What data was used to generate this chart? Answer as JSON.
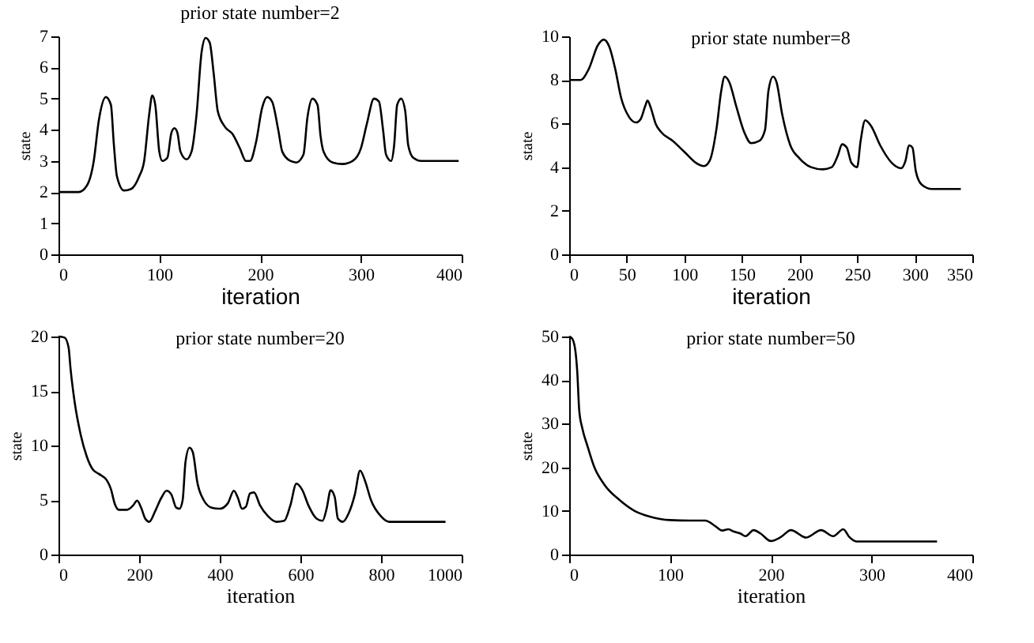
{
  "chart_data": [
    {
      "type": "line",
      "title": "prior state number=2",
      "xlabel": "iteration",
      "ylabel": "state",
      "xlim": [
        0,
        400
      ],
      "xticks": [
        0,
        100,
        200,
        300,
        400
      ],
      "ylim": [
        0,
        7
      ],
      "yticks": [
        0,
        1,
        2,
        3,
        4,
        5,
        6,
        7
      ],
      "x": [
        0,
        20,
        28,
        35,
        40,
        47,
        52,
        55,
        58,
        65,
        72,
        80,
        85,
        90,
        93,
        96,
        100,
        103,
        108,
        112,
        115,
        118,
        121,
        127,
        132,
        137,
        142,
        146,
        150,
        154,
        158,
        165,
        173,
        180,
        186,
        190,
        196,
        202,
        207,
        212,
        218,
        222,
        230,
        236,
        243,
        247,
        252,
        257,
        260,
        263,
        272,
        282,
        292,
        300,
        306,
        313,
        318,
        322,
        325,
        330,
        333,
        336,
        340,
        344,
        347,
        352,
        360,
        397
      ],
      "series": [
        {
          "color": "#000000",
          "values": [
            2,
            2,
            2.2,
            3,
            4.3,
            5.05,
            4.8,
            3.5,
            2.5,
            2.05,
            2.1,
            2.5,
            3,
            4.5,
            5.1,
            4.8,
            3.3,
            3.0,
            3.1,
            3.9,
            4.05,
            3.9,
            3.3,
            3.05,
            3.3,
            4.5,
            6.5,
            6.95,
            6.8,
            5.8,
            4.6,
            4.1,
            3.85,
            3.4,
            3.0,
            3.0,
            3.6,
            4.7,
            5.05,
            4.9,
            4.0,
            3.3,
            3.0,
            2.95,
            3.2,
            4.4,
            5.0,
            4.8,
            3.8,
            3.3,
            2.95,
            2.9,
            3.0,
            3.4,
            4.2,
            5.0,
            4.9,
            4.0,
            3.2,
            3.0,
            3.5,
            4.8,
            5.0,
            4.6,
            3.5,
            3.1,
            3.0,
            3.0
          ]
        }
      ]
    },
    {
      "type": "line",
      "title": "prior state number=8",
      "xlabel": "iteration",
      "ylabel": "state",
      "xlim": [
        0,
        350
      ],
      "xticks": [
        0,
        50,
        100,
        150,
        200,
        250,
        300,
        350
      ],
      "ylim": [
        0,
        10
      ],
      "yticks": [
        0,
        2,
        4,
        6,
        8,
        10
      ],
      "x": [
        0,
        10,
        17,
        25,
        30,
        35,
        40,
        45,
        52,
        58,
        62,
        66,
        68,
        71,
        75,
        80,
        90,
        100,
        110,
        117,
        122,
        128,
        132,
        135,
        139,
        145,
        152,
        158,
        165,
        170,
        173,
        177,
        180,
        185,
        192,
        200,
        210,
        220,
        228,
        233,
        237,
        241,
        245,
        250,
        253,
        257,
        262,
        270,
        280,
        288,
        292,
        295,
        298,
        301,
        306,
        315,
        340
      ],
      "series": [
        {
          "color": "#000000",
          "values": [
            8,
            8,
            8.5,
            9.6,
            9.85,
            9.5,
            8.5,
            7.2,
            6.3,
            6.05,
            6.2,
            6.8,
            7.05,
            6.7,
            6.0,
            5.6,
            5.2,
            4.7,
            4.2,
            4.05,
            4.3,
            5.8,
            7.5,
            8.15,
            7.9,
            6.8,
            5.6,
            5.1,
            5.2,
            5.7,
            7.5,
            8.15,
            7.9,
            6.4,
            5.0,
            4.4,
            4.0,
            3.9,
            4.0,
            4.5,
            5.05,
            4.9,
            4.2,
            4.0,
            5.2,
            6.15,
            5.9,
            5.0,
            4.2,
            3.95,
            4.3,
            5.0,
            4.9,
            3.8,
            3.2,
            3.0,
            3.0
          ]
        }
      ]
    },
    {
      "type": "line",
      "title": "prior state number=20",
      "xlabel": "iteration",
      "ylabel": "state",
      "xlim": [
        0,
        1000
      ],
      "xticks": [
        0,
        200,
        400,
        600,
        800,
        1000
      ],
      "ylim": [
        0,
        20
      ],
      "yticks": [
        0,
        5,
        10,
        15,
        20
      ],
      "x": [
        0,
        15,
        25,
        30,
        40,
        55,
        70,
        85,
        100,
        120,
        130,
        140,
        150,
        170,
        185,
        195,
        205,
        215,
        225,
        240,
        255,
        268,
        280,
        292,
        300,
        308,
        315,
        325,
        333,
        345,
        360,
        380,
        400,
        420,
        435,
        445,
        455,
        465,
        475,
        485,
        500,
        520,
        540,
        560,
        575,
        590,
        605,
        620,
        640,
        655,
        665,
        675,
        685,
        693,
        705,
        720,
        735,
        748,
        760,
        775,
        800,
        820,
        850,
        960
      ],
      "series": [
        {
          "color": "#000000",
          "values": [
            20,
            19.9,
            19,
            17,
            14,
            11,
            9,
            7.8,
            7.4,
            6.8,
            6,
            4.6,
            4.1,
            4.1,
            4.5,
            4.95,
            4.3,
            3.3,
            3.0,
            4.0,
            5.2,
            5.85,
            5.5,
            4.3,
            4.2,
            5,
            8.5,
            9.8,
            9.4,
            6.5,
            5,
            4.3,
            4.2,
            4.7,
            5.85,
            5.2,
            4.2,
            4.4,
            5.6,
            5.7,
            4.5,
            3.5,
            3.0,
            3.1,
            4.5,
            6.5,
            5.9,
            4.5,
            3.3,
            3.1,
            4.2,
            5.9,
            5.3,
            3.3,
            3.0,
            3.8,
            5.5,
            7.7,
            6.8,
            5,
            3.5,
            3.0,
            3.0,
            3.0
          ]
        }
      ]
    },
    {
      "type": "line",
      "title": "prior state number=50",
      "xlabel": "iteration",
      "ylabel": "state",
      "xlim": [
        0,
        400
      ],
      "xticks": [
        0,
        100,
        200,
        300,
        400
      ],
      "ylim": [
        0,
        50
      ],
      "yticks": [
        0,
        10,
        20,
        30,
        40,
        50
      ],
      "x": [
        0,
        3,
        6,
        8,
        10,
        13,
        18,
        25,
        35,
        50,
        65,
        80,
        100,
        120,
        135,
        145,
        152,
        158,
        163,
        170,
        175,
        183,
        190,
        200,
        210,
        220,
        235,
        250,
        262,
        272,
        278,
        285,
        300,
        365
      ],
      "series": [
        {
          "color": "#000000",
          "values": [
            50,
            49.5,
            47,
            42,
            33,
            29,
            25,
            20,
            16,
            12.5,
            10,
            8.7,
            7.9,
            7.8,
            7.8,
            6.5,
            5.5,
            5.8,
            5.3,
            4.8,
            4.2,
            5.6,
            4.8,
            3.1,
            4.0,
            5.6,
            3.9,
            5.6,
            4.2,
            5.8,
            4,
            3.0,
            3.0,
            3.0
          ]
        }
      ]
    }
  ]
}
